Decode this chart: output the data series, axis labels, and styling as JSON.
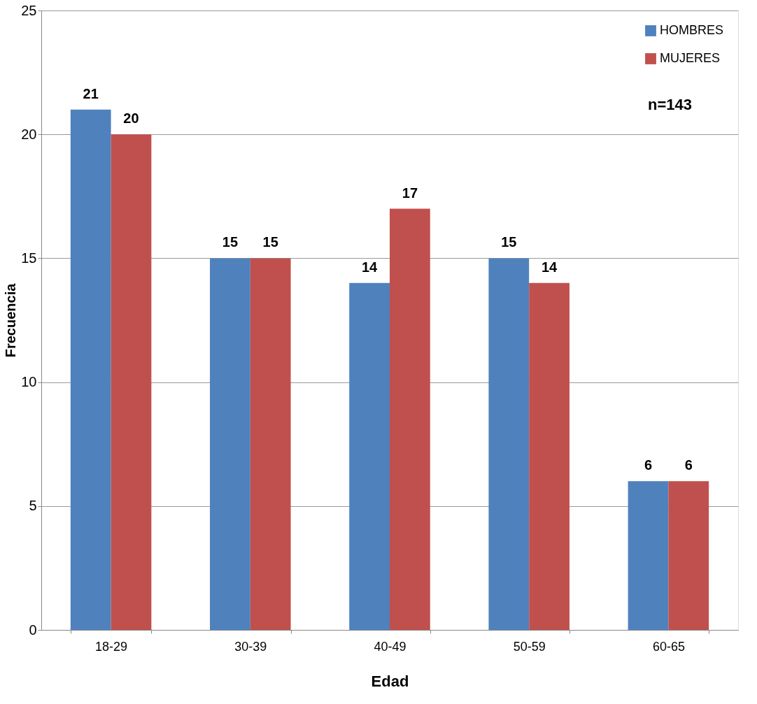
{
  "chart_data": {
    "type": "bar",
    "xlabel": "Edad",
    "ylabel": "Frecuencia",
    "categories": [
      "18-29",
      "30-39",
      "40-49",
      "50-59",
      "60-65"
    ],
    "series": [
      {
        "name": "HOMBRES",
        "color": "#4f81bd",
        "values": [
          21,
          15,
          14,
          15,
          6
        ]
      },
      {
        "name": "MUJERES",
        "color": "#c0504d",
        "values": [
          20,
          15,
          17,
          14,
          6
        ]
      }
    ],
    "ylim": [
      0,
      25
    ],
    "yticks": [
      0,
      5,
      10,
      15,
      20,
      25
    ],
    "grid": "y",
    "legend": "top right",
    "data_labels": true,
    "annotations": [
      "n=143"
    ]
  }
}
